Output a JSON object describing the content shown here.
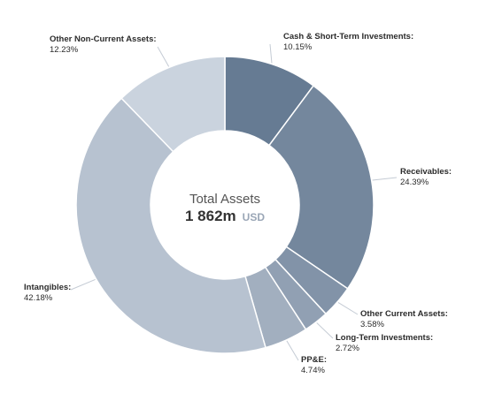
{
  "chart_data": {
    "type": "pie",
    "subtype": "donut",
    "center": {
      "title": "Total Assets",
      "value": "1 862m",
      "unit": "USD"
    },
    "slices": [
      {
        "label": "Cash & Short-Term Investments",
        "value": 10.15,
        "display": "10.15%",
        "color": "#667b93"
      },
      {
        "label": "Receivables",
        "value": 24.39,
        "display": "24.39%",
        "color": "#74879d"
      },
      {
        "label": "Other Current Assets",
        "value": 3.58,
        "display": "3.58%",
        "color": "#8293a8"
      },
      {
        "label": "Long-Term Investments",
        "value": 2.72,
        "display": "2.72%",
        "color": "#91a0b3"
      },
      {
        "label": "PP&E",
        "value": 4.74,
        "display": "4.74%",
        "color": "#a2afbf"
      },
      {
        "label": "Intangibles",
        "value": 42.18,
        "display": "42.18%",
        "color": "#b7c2d0"
      },
      {
        "label": "Other Non-Current Assets",
        "value": 12.23,
        "display": "12.23%",
        "color": "#cad3de"
      }
    ]
  }
}
